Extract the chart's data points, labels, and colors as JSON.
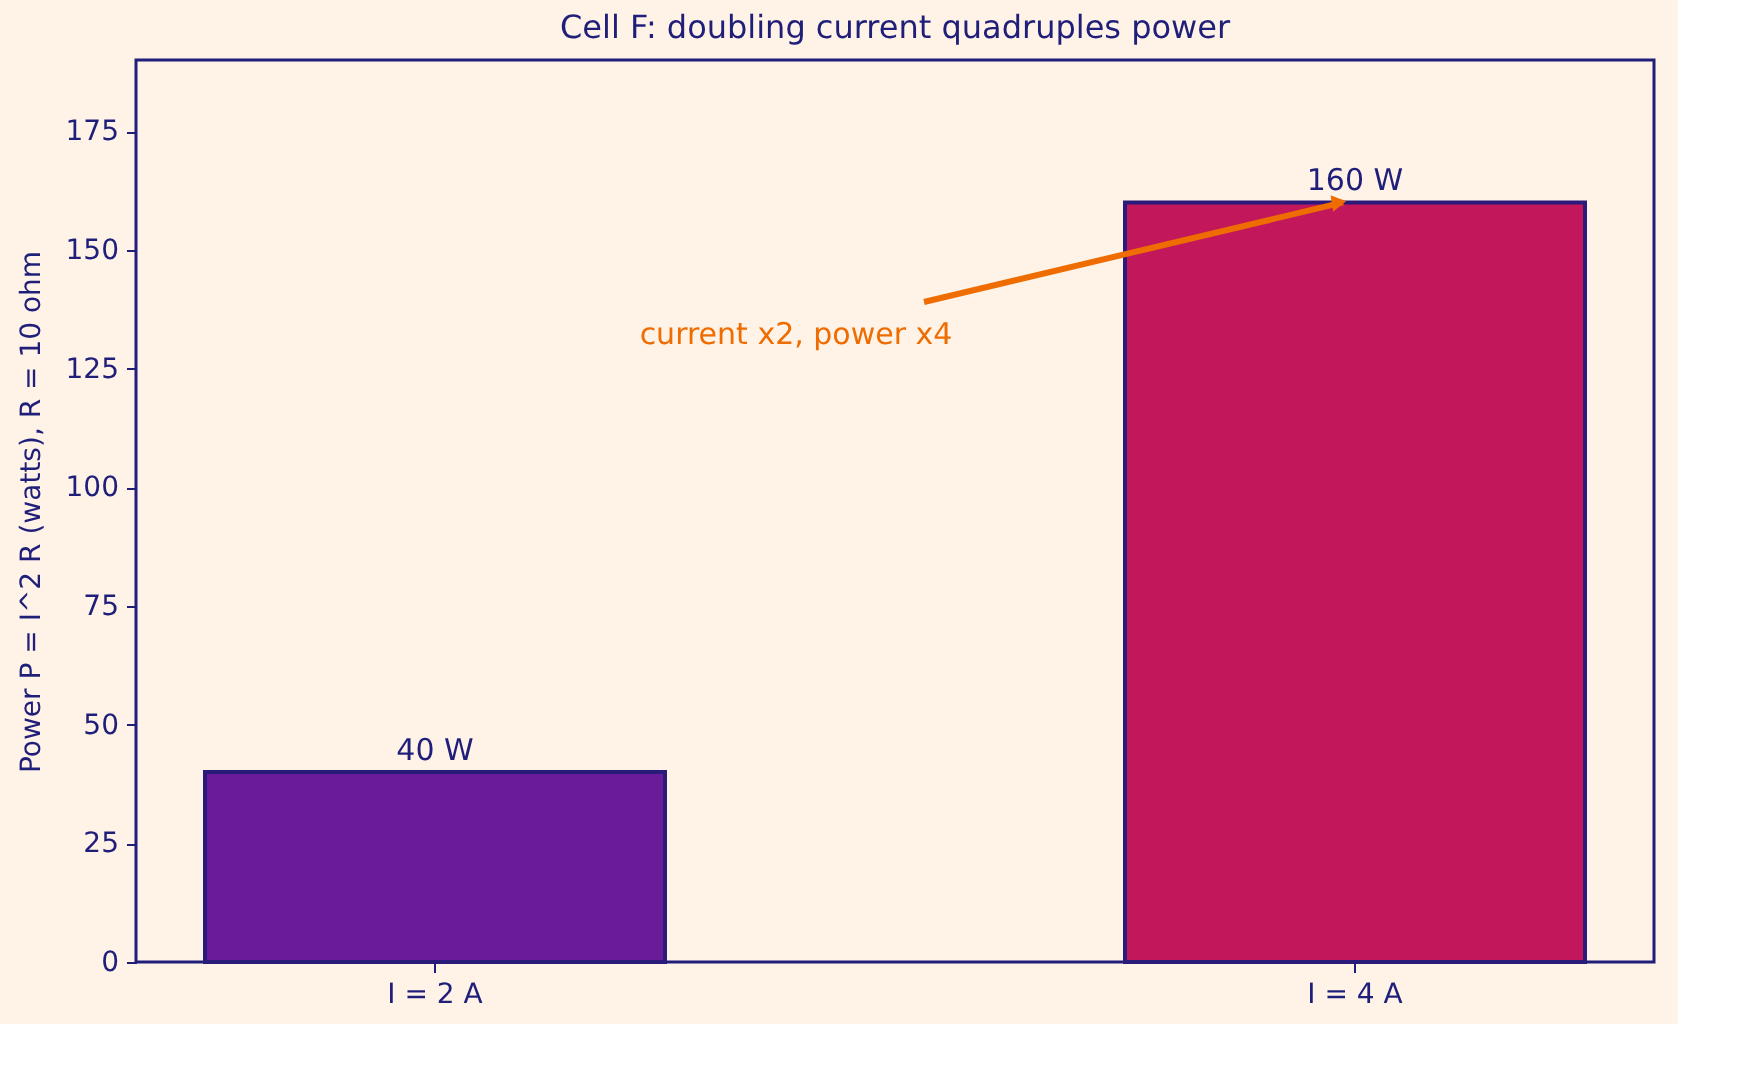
{
  "chart_data": {
    "type": "bar",
    "title": "Cell F: doubling current quadruples power",
    "ylabel": "Power  P = I^2 R  (watts),  R = 10 ohm",
    "categories": [
      "I = 2 A",
      "I = 4 A"
    ],
    "values": [
      40,
      160
    ],
    "colors": [
      "#6a1b9a",
      "#c2185b"
    ],
    "value_labels": [
      "40 W",
      "160 W"
    ],
    "ylim": [
      0,
      190
    ],
    "yticks": [
      0,
      25,
      50,
      75,
      100,
      125,
      150,
      175
    ],
    "grid": false,
    "annotations": [
      {
        "text": "current x2, power x4",
        "x": "I = 4 A",
        "y": 160
      }
    ]
  }
}
